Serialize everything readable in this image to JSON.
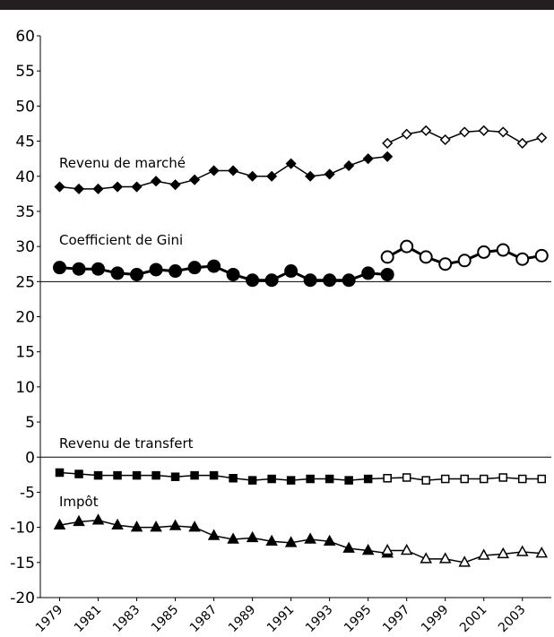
{
  "chart_data": {
    "type": "line",
    "x": [
      1979,
      1980,
      1981,
      1982,
      1983,
      1984,
      1985,
      1986,
      1987,
      1988,
      1989,
      1990,
      1991,
      1992,
      1993,
      1994,
      1995,
      1996,
      1997,
      1998,
      1999,
      2000,
      2001,
      2002,
      2003,
      2004
    ],
    "xlim": [
      1978,
      2004.5
    ],
    "xticks": [
      1979,
      1981,
      1983,
      1985,
      1987,
      1989,
      1991,
      1993,
      1995,
      1997,
      1999,
      2001,
      2003
    ],
    "ylim": [
      -20,
      60
    ],
    "yticks": [
      -20,
      -15,
      -10,
      -5,
      0,
      5,
      10,
      15,
      20,
      25,
      30,
      35,
      40,
      45,
      50,
      55,
      60
    ],
    "hlines": [
      0,
      25
    ],
    "annotations": [
      "Revenu de marché",
      "Coefficient de Gini",
      "Revenu de transfert",
      "Impôt"
    ],
    "series": [
      {
        "color": "#000000",
        "marker": "diamond",
        "filled": true,
        "line_width": 1.5,
        "values": [
          38.5,
          38.2,
          38.2,
          38.5,
          38.5,
          39.3,
          38.8,
          39.5,
          40.8,
          40.8,
          40.0,
          40.0,
          41.8,
          40.0,
          40.3,
          41.5,
          42.5,
          42.8,
          null,
          null,
          null,
          null,
          null,
          null,
          null,
          null
        ]
      },
      {
        "color": "#000000",
        "marker": "diamond",
        "filled": false,
        "line_width": 1.5,
        "values": [
          null,
          null,
          null,
          null,
          null,
          null,
          null,
          null,
          null,
          null,
          null,
          null,
          null,
          null,
          null,
          null,
          null,
          44.7,
          46.0,
          46.5,
          45.2,
          46.3,
          46.5,
          46.3,
          44.7,
          45.5
        ]
      },
      {
        "color": "#000000",
        "marker": "circle",
        "filled": true,
        "line_width": 3,
        "values": [
          27.0,
          26.8,
          26.8,
          26.2,
          26.0,
          26.7,
          26.5,
          27.0,
          27.2,
          26.0,
          25.2,
          25.2,
          26.5,
          25.2,
          25.2,
          25.2,
          26.2,
          26.0,
          null,
          null,
          null,
          null,
          null,
          null,
          null,
          null
        ]
      },
      {
        "color": "#000000",
        "marker": "circle",
        "filled": false,
        "line_width": 3,
        "values": [
          null,
          null,
          null,
          null,
          null,
          null,
          null,
          null,
          null,
          null,
          null,
          null,
          null,
          null,
          null,
          null,
          null,
          28.5,
          30.0,
          28.5,
          27.5,
          28.0,
          29.2,
          29.5,
          28.2,
          28.7
        ]
      },
      {
        "color": "#000000",
        "marker": "square",
        "filled": true,
        "line_width": 1.5,
        "values": [
          -2.2,
          -2.4,
          -2.6,
          -2.6,
          -2.6,
          -2.6,
          -2.8,
          -2.6,
          -2.6,
          -3.0,
          -3.3,
          -3.1,
          -3.3,
          -3.1,
          -3.1,
          -3.3,
          -3.1,
          -3.0,
          null,
          null,
          null,
          null,
          null,
          null,
          null,
          null
        ]
      },
      {
        "color": "#000000",
        "marker": "square",
        "filled": false,
        "line_width": 1.5,
        "values": [
          null,
          null,
          null,
          null,
          null,
          null,
          null,
          null,
          null,
          null,
          null,
          null,
          null,
          null,
          null,
          null,
          null,
          -3.0,
          -2.9,
          -3.3,
          -3.1,
          -3.1,
          -3.1,
          -2.9,
          -3.1,
          -3.1
        ]
      },
      {
        "color": "#000000",
        "marker": "triangle",
        "filled": true,
        "line_width": 1.5,
        "values": [
          -9.7,
          -9.2,
          -9.0,
          -9.7,
          -10.0,
          -10.0,
          -9.8,
          -10.0,
          -11.2,
          -11.7,
          -11.5,
          -12.0,
          -12.2,
          -11.7,
          -12.0,
          -13.0,
          -13.3,
          -13.7,
          null,
          null,
          null,
          null,
          null,
          null,
          null,
          null
        ]
      },
      {
        "color": "#000000",
        "marker": "triangle",
        "filled": false,
        "line_width": 1.5,
        "values": [
          null,
          null,
          null,
          null,
          null,
          null,
          null,
          null,
          null,
          null,
          null,
          null,
          null,
          null,
          null,
          null,
          null,
          -13.3,
          -13.3,
          -14.5,
          -14.5,
          -15.0,
          -14.0,
          -13.8,
          -13.5,
          -13.7
        ]
      }
    ]
  }
}
